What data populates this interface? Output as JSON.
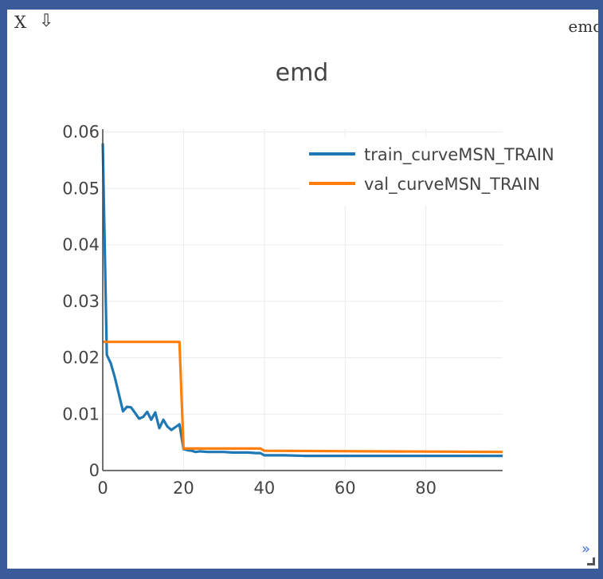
{
  "window": {
    "close_label": "X",
    "download_label": "⇩",
    "title": "emd",
    "expand_label": "»"
  },
  "colors": {
    "background": "#3a5a99",
    "grid": "#ebebeb",
    "train": "#1f77b4",
    "val": "#ff7f0e"
  },
  "chart_data": {
    "type": "line",
    "title": "emd",
    "xlabel": "",
    "ylabel": "",
    "xlim": [
      0,
      99
    ],
    "ylim": [
      0,
      0.0605
    ],
    "x_ticks": [
      0,
      20,
      40,
      60,
      80
    ],
    "y_ticks": [
      0,
      0.01,
      0.02,
      0.03,
      0.04,
      0.05,
      0.06
    ],
    "y_tick_labels": [
      "0",
      "0.01",
      "0.02",
      "0.03",
      "0.04",
      "0.05",
      "0.06"
    ],
    "grid": true,
    "legend_position": "top-right",
    "series": [
      {
        "name": "train_curveMSN_TRAIN",
        "color": "#1f77b4",
        "x": [
          0,
          1,
          2,
          3,
          4,
          5,
          6,
          7,
          8,
          9,
          10,
          11,
          12,
          13,
          14,
          15,
          16,
          17,
          18,
          19,
          20,
          21,
          22,
          23,
          24,
          26,
          28,
          30,
          32,
          34,
          36,
          38,
          39,
          40,
          45,
          50,
          52,
          55,
          60,
          70,
          80,
          90,
          99
        ],
        "y": [
          0.058,
          0.0205,
          0.019,
          0.0165,
          0.0135,
          0.0105,
          0.0113,
          0.0112,
          0.0102,
          0.0092,
          0.0095,
          0.0104,
          0.009,
          0.0103,
          0.0075,
          0.009,
          0.0078,
          0.0072,
          0.0077,
          0.0082,
          0.0038,
          0.0036,
          0.0035,
          0.0033,
          0.0034,
          0.0033,
          0.0033,
          0.0033,
          0.0032,
          0.0032,
          0.0032,
          0.0031,
          0.0031,
          0.0027,
          0.0027,
          0.0026,
          0.0026,
          0.0026,
          0.0026,
          0.0026,
          0.0026,
          0.0026,
          0.0026
        ]
      },
      {
        "name": "val_curveMSN_TRAIN",
        "color": "#ff7f0e",
        "x": [
          0,
          19,
          20,
          39,
          40,
          99
        ],
        "y": [
          0.0228,
          0.0228,
          0.0039,
          0.0039,
          0.0035,
          0.0033
        ]
      }
    ]
  }
}
